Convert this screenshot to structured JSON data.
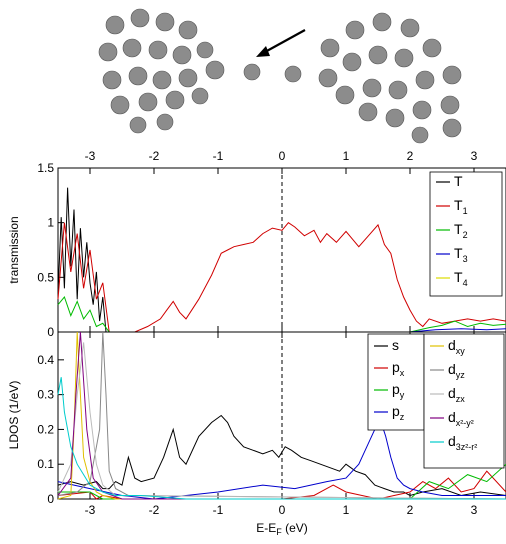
{
  "chart_data": [
    {
      "type": "line",
      "panel": "transmission",
      "xlabel": "",
      "ylabel": "transmission",
      "xlim": [
        -3.5,
        3.5
      ],
      "ylim": [
        0,
        1.5
      ],
      "xticks": [
        "-3",
        "-2",
        "-1",
        "0",
        "1",
        "2",
        "3"
      ],
      "yticks": [
        "0",
        "0.5",
        "1",
        "1.5"
      ],
      "fermi_line": "dashed vertical at 0",
      "grid": false,
      "legend_position": "top-right",
      "legend": [
        {
          "text": "T",
          "sub": ""
        },
        {
          "text": "T",
          "sub": "1"
        },
        {
          "text": "T",
          "sub": "2"
        },
        {
          "text": "T",
          "sub": "3"
        },
        {
          "text": "T",
          "sub": "4"
        }
      ],
      "series": [
        {
          "key": "T",
          "color": "#000000",
          "x": [
            -3.5,
            -3.45,
            -3.4,
            -3.35,
            -3.3,
            -3.25,
            -3.2,
            -3.15,
            -3.1,
            -3.05,
            -3.0,
            -2.95,
            -2.9,
            -2.85,
            -2.8,
            -2.75,
            -2.7
          ],
          "y": [
            0.35,
            1.05,
            0.4,
            1.32,
            0.6,
            1.12,
            0.3,
            0.95,
            0.5,
            0.82,
            0.45,
            0.25,
            0.55,
            0.1,
            0.32,
            0.0,
            0.0
          ]
        },
        {
          "key": "T1",
          "color": "#d00000",
          "x": [
            -3.5,
            -3.4,
            -3.3,
            -3.2,
            -3.1,
            -3.0,
            -2.9,
            -2.8,
            -2.7,
            -2.5,
            -2.3,
            -2.1,
            -1.9,
            -1.8,
            -1.7,
            -1.6,
            -1.5,
            -1.3,
            -1.1,
            -0.95,
            -0.85,
            -0.75,
            -0.6,
            -0.45,
            -0.3,
            -0.15,
            0.0,
            0.1,
            0.2,
            0.35,
            0.5,
            0.6,
            0.7,
            0.85,
            1.0,
            1.1,
            1.2,
            1.35,
            1.5,
            1.6,
            1.7,
            1.8,
            1.9,
            2.0,
            2.1,
            2.2,
            2.3,
            2.5,
            2.7,
            2.9,
            3.1,
            3.3,
            3.5
          ],
          "y": [
            0.3,
            1.0,
            0.55,
            0.9,
            0.4,
            0.75,
            0.3,
            0.45,
            0.0,
            0.0,
            0.0,
            0.05,
            0.12,
            0.2,
            0.28,
            0.18,
            0.12,
            0.3,
            0.52,
            0.72,
            0.75,
            0.78,
            0.8,
            0.82,
            0.9,
            0.95,
            0.93,
            1.0,
            0.96,
            0.88,
            0.93,
            0.82,
            0.9,
            0.82,
            0.92,
            0.85,
            0.78,
            0.88,
            0.98,
            0.8,
            0.72,
            0.48,
            0.32,
            0.2,
            0.1,
            0.05,
            0.12,
            0.08,
            0.1,
            0.12,
            0.1,
            0.12,
            0.1
          ]
        },
        {
          "key": "T2",
          "color": "#00bb00",
          "x": [
            -3.5,
            -3.4,
            -3.3,
            -3.2,
            -3.1,
            -3.0,
            -2.9,
            -2.8,
            -2.7,
            2.0,
            2.3,
            2.5,
            2.7,
            2.9,
            3.1,
            3.3,
            3.5
          ],
          "y": [
            0.25,
            0.32,
            0.15,
            0.28,
            0.12,
            0.2,
            0.05,
            0.08,
            0.0,
            0.0,
            0.04,
            0.06,
            0.1,
            0.05,
            0.08,
            0.06,
            0.07
          ]
        },
        {
          "key": "T3",
          "color": "#0000cc",
          "x": [
            -3.5,
            2.0,
            2.4,
            2.8,
            3.2,
            3.5
          ],
          "y": [
            0.0,
            0.0,
            0.02,
            0.03,
            0.02,
            0.03
          ]
        },
        {
          "key": "T4",
          "color": "#dddd00",
          "x": [
            -3.5,
            3.5
          ],
          "y": [
            0.0,
            0.0
          ]
        }
      ]
    },
    {
      "type": "line",
      "panel": "LDOS",
      "xlabel": "E-Eᴅ",
      "xlabel_main": "E-E",
      "xlabel_sub": "F",
      "xlabel_unit": " (eV)",
      "ylabel": "LDOS (1/eV)",
      "xlim": [
        -3.5,
        3.5
      ],
      "ylim": [
        0,
        0.48
      ],
      "xticks": [
        "-3",
        "-2",
        "-1",
        "0",
        "1",
        "2",
        "3"
      ],
      "yticks": [
        "0",
        "0.1",
        "0.2",
        "0.3",
        "0.4"
      ],
      "fermi_line": "dashed vertical at 0",
      "grid": false,
      "legend_position": "top-right",
      "legend": [
        {
          "text": "s",
          "sub": "",
          "sup": ""
        },
        {
          "text": "p",
          "sub": "x",
          "sup": ""
        },
        {
          "text": "p",
          "sub": "y",
          "sup": ""
        },
        {
          "text": "p",
          "sub": "z",
          "sup": ""
        },
        {
          "text": "d",
          "sub": "xy",
          "sup": ""
        },
        {
          "text": "d",
          "sub": "yz",
          "sup": ""
        },
        {
          "text": "d",
          "sub": "zx",
          "sup": ""
        },
        {
          "text": "d",
          "sub": "x²-y²",
          "sup": ""
        },
        {
          "text": "d",
          "sub": "3z²-r²",
          "sup": ""
        }
      ],
      "series": [
        {
          "key": "s",
          "color": "#000000",
          "x": [
            -3.5,
            -3.3,
            -3.1,
            -2.9,
            -2.8,
            -2.7,
            -2.6,
            -2.5,
            -2.4,
            -2.3,
            -2.2,
            -2.0,
            -1.85,
            -1.7,
            -1.6,
            -1.5,
            -1.3,
            -1.1,
            -0.95,
            -0.85,
            -0.75,
            -0.6,
            -0.45,
            -0.3,
            -0.15,
            -0.05,
            0.05,
            0.15,
            0.3,
            0.45,
            0.6,
            0.75,
            0.9,
            1.0,
            1.15,
            1.3,
            1.45,
            1.6,
            1.75,
            1.9,
            2.0,
            2.2,
            2.5,
            2.8,
            3.1,
            3.5
          ],
          "y": [
            0.04,
            0.05,
            0.04,
            0.05,
            0.03,
            0.03,
            0.05,
            0.04,
            0.12,
            0.06,
            0.05,
            0.06,
            0.12,
            0.2,
            0.12,
            0.1,
            0.18,
            0.22,
            0.24,
            0.22,
            0.18,
            0.15,
            0.14,
            0.13,
            0.14,
            0.12,
            0.15,
            0.14,
            0.12,
            0.11,
            0.1,
            0.09,
            0.08,
            0.1,
            0.08,
            0.07,
            0.04,
            0.03,
            0.02,
            0.02,
            0.01,
            0.02,
            0.03,
            0.01,
            0.02,
            0.01
          ]
        },
        {
          "key": "px",
          "color": "#d00000",
          "x": [
            -3.5,
            -3.0,
            -2.9,
            -2.8,
            -2.5,
            -2.0,
            -1.0,
            0.0,
            0.5,
            0.8,
            1.0,
            1.5,
            2.0,
            2.2,
            2.4,
            2.6,
            2.8,
            3.0,
            3.2,
            3.5
          ],
          "y": [
            0.01,
            0.02,
            0.0,
            0.01,
            0.0,
            0.0,
            0.0,
            0.0,
            0.01,
            0.04,
            0.02,
            0.0,
            0.02,
            0.05,
            0.03,
            0.06,
            0.02,
            0.03,
            0.08,
            0.02
          ]
        },
        {
          "key": "py",
          "color": "#00bb00",
          "x": [
            -3.5,
            -3.0,
            -2.8,
            -2.5,
            2.0,
            2.3,
            2.6,
            2.9,
            3.2,
            3.5
          ],
          "y": [
            0.02,
            0.02,
            0.0,
            0.0,
            0.0,
            0.05,
            0.03,
            0.07,
            0.05,
            0.1
          ]
        },
        {
          "key": "pz",
          "color": "#0000cc",
          "x": [
            -3.5,
            -3.0,
            -2.5,
            -2.0,
            -1.0,
            -0.3,
            0.2,
            0.7,
            1.0,
            1.2,
            1.35,
            1.45,
            1.55,
            1.62,
            1.7,
            1.8,
            1.9,
            2.0,
            2.2,
            2.5,
            3.0,
            3.5
          ],
          "y": [
            0.05,
            0.03,
            0.01,
            0.0,
            0.02,
            0.04,
            0.03,
            0.05,
            0.06,
            0.1,
            0.16,
            0.2,
            0.22,
            0.18,
            0.12,
            0.06,
            0.04,
            0.03,
            0.02,
            0.01,
            0.01,
            0.01
          ]
        },
        {
          "key": "dxy",
          "color": "#e0c000",
          "x": [
            -3.5,
            -3.3,
            -3.25,
            -3.2,
            -3.15,
            -3.1,
            -3.0,
            -2.9,
            -2.8,
            -2.6,
            3.5
          ],
          "y": [
            0.0,
            0.01,
            0.2,
            0.48,
            0.3,
            0.12,
            0.05,
            0.02,
            0.01,
            0.0,
            0.0
          ]
        },
        {
          "key": "dyz",
          "color": "#888888",
          "x": [
            -3.5,
            -3.2,
            -3.0,
            -2.85,
            -2.8,
            -2.75,
            -2.7,
            -2.6,
            -2.4,
            3.5
          ],
          "y": [
            0.01,
            0.02,
            0.05,
            0.2,
            0.48,
            0.3,
            0.08,
            0.03,
            0.01,
            0.0
          ]
        },
        {
          "key": "dzx",
          "color": "#bbbbbb",
          "x": [
            -3.5,
            -3.3,
            -3.2,
            -3.1,
            -3.0,
            -2.9,
            -2.8,
            -2.6,
            3.5
          ],
          "y": [
            0.02,
            0.1,
            0.3,
            0.45,
            0.25,
            0.1,
            0.04,
            0.01,
            0.0
          ]
        },
        {
          "key": "dx2y2",
          "color": "#800080",
          "x": [
            -3.5,
            -3.3,
            -3.22,
            -3.15,
            -3.05,
            -2.95,
            -2.8,
            -2.5,
            3.5
          ],
          "y": [
            0.01,
            0.06,
            0.3,
            0.48,
            0.2,
            0.06,
            0.02,
            0.0,
            0.0
          ]
        },
        {
          "key": "d3z2r2",
          "color": "#00cccc",
          "x": [
            -3.5,
            -3.45,
            -3.4,
            -3.3,
            -3.2,
            -3.1,
            -3.0,
            -2.9,
            -2.8,
            -2.6,
            -2.2,
            -1.5,
            0.0,
            3.5
          ],
          "y": [
            0.3,
            0.35,
            0.25,
            0.15,
            0.1,
            0.07,
            0.04,
            0.03,
            0.02,
            0.01,
            0.01,
            0.0,
            0.0,
            0.0
          ]
        }
      ]
    }
  ]
}
